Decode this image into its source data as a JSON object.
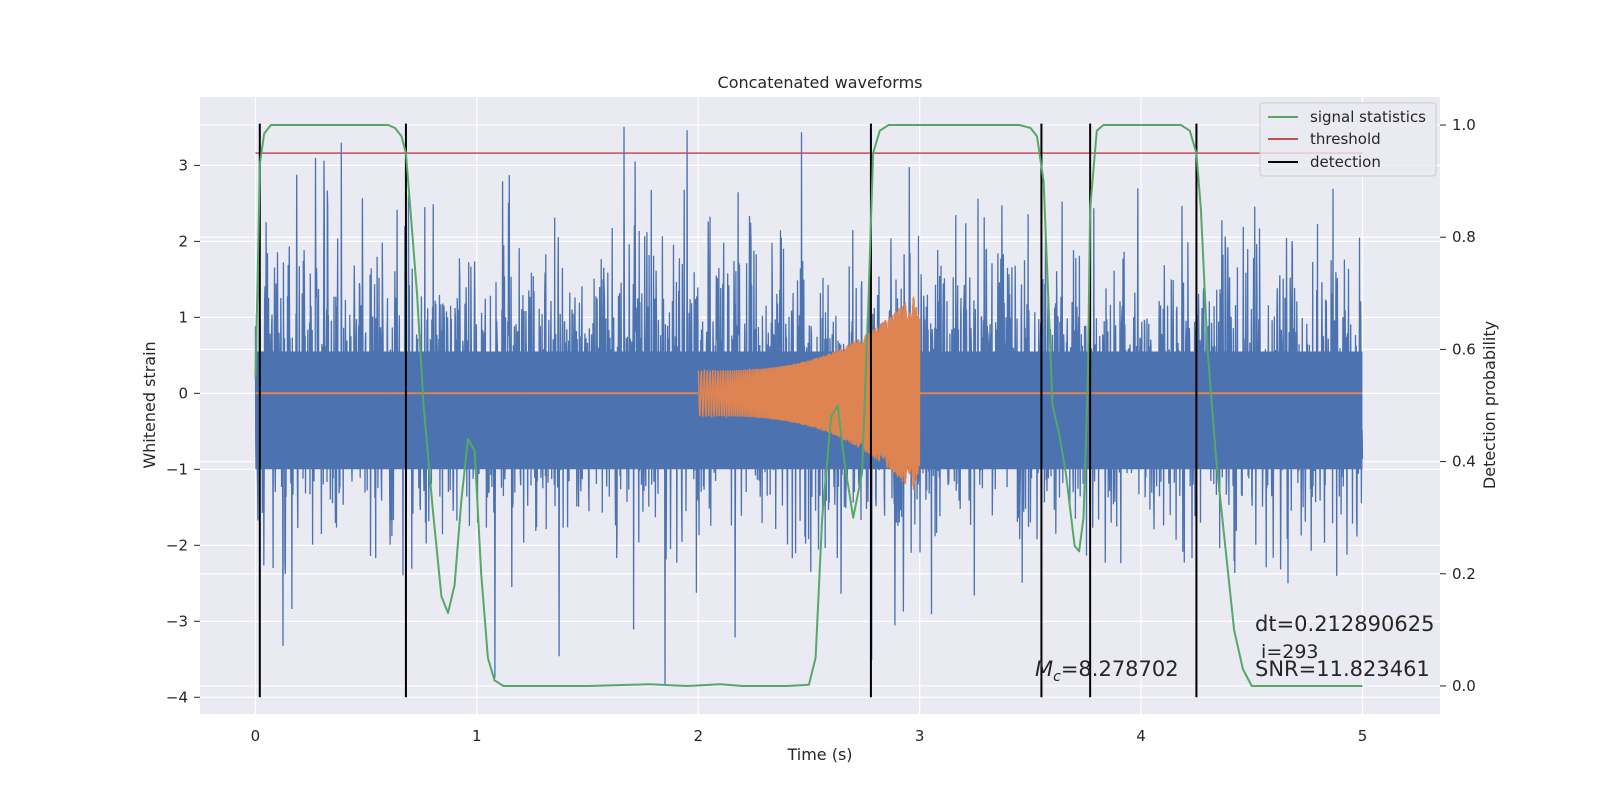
{
  "chart_data": {
    "type": "line",
    "title": "Concatenated waveforms",
    "xlabel": "Time (s)",
    "ylabel": "Whitened strain",
    "ylabel_right": "Detection probability",
    "xlim": [
      -0.25,
      5.35
    ],
    "ylim": [
      -4.22,
      3.9
    ],
    "ylim_right": [
      -0.05,
      1.05
    ],
    "x_ticks": [
      0,
      1,
      2,
      3,
      4,
      5
    ],
    "y_ticks": [
      -4,
      -3,
      -2,
      -1,
      0,
      1,
      2,
      3
    ],
    "y_ticks_right": [
      0.0,
      0.2,
      0.4,
      0.6,
      0.8,
      1.0
    ],
    "grid": true,
    "legend_position": "top-right",
    "colors": {
      "background": "#eaeaf2",
      "grid": "#ffffff",
      "strain": "#4c72b0",
      "template": "#dd8452",
      "signal_statistics": "#55a868",
      "threshold": "#c44e52",
      "detection": "#000000"
    },
    "series": [
      {
        "name": "signal statistics",
        "axis": "right",
        "x": [
          0.0,
          0.01,
          0.02,
          0.04,
          0.07,
          0.1,
          0.15,
          0.6,
          0.63,
          0.66,
          0.68,
          0.7,
          0.73,
          0.76,
          0.8,
          0.84,
          0.87,
          0.9,
          0.93,
          0.96,
          0.99,
          1.02,
          1.05,
          1.08,
          1.12,
          1.2,
          1.5,
          1.78,
          1.95,
          2.1,
          2.2,
          2.4,
          2.5,
          2.53,
          2.56,
          2.6,
          2.63,
          2.66,
          2.7,
          2.74,
          2.77,
          2.79,
          2.82,
          2.86,
          2.95,
          3.45,
          3.5,
          3.53,
          3.56,
          3.58,
          3.6,
          3.63,
          3.66,
          3.7,
          3.72,
          3.74,
          3.76,
          3.77,
          3.8,
          3.83,
          3.86,
          4.18,
          4.22,
          4.25,
          4.27,
          4.3,
          4.34,
          4.38,
          4.42,
          4.46,
          4.5,
          4.6,
          5.0
        ],
        "y": [
          0.55,
          0.72,
          0.93,
          0.985,
          1.0,
          1.0,
          1.0,
          1.0,
          0.995,
          0.98,
          0.95,
          0.85,
          0.7,
          0.5,
          0.32,
          0.16,
          0.13,
          0.18,
          0.33,
          0.44,
          0.42,
          0.2,
          0.05,
          0.01,
          0.0,
          0.0,
          0.0,
          0.003,
          0.0,
          0.003,
          0.0,
          0.0,
          0.002,
          0.05,
          0.3,
          0.48,
          0.5,
          0.4,
          0.3,
          0.38,
          0.7,
          0.95,
          0.99,
          1.0,
          1.0,
          1.0,
          0.995,
          0.98,
          0.9,
          0.7,
          0.5,
          0.45,
          0.38,
          0.25,
          0.24,
          0.3,
          0.55,
          0.85,
          0.99,
          1.0,
          1.0,
          1.0,
          0.99,
          0.95,
          0.85,
          0.6,
          0.4,
          0.25,
          0.1,
          0.03,
          0.0,
          0.0,
          0.0
        ]
      },
      {
        "name": "threshold",
        "axis": "right",
        "x": [
          0.0,
          5.0
        ],
        "y": [
          0.95,
          0.95
        ]
      },
      {
        "name": "detection",
        "axis": "left",
        "x": [
          0.02,
          0.68,
          2.78,
          3.55,
          3.77,
          4.25
        ],
        "y_range": [
          -4.0,
          3.55
        ]
      }
    ],
    "strain_noise": {
      "x_range": [
        0.0,
        5.0
      ],
      "dense_band": [
        -1.0,
        0.55
      ],
      "peak_range": [
        -4.0,
        3.55
      ]
    },
    "template_waveform": {
      "x_range": [
        2.0,
        3.0
      ],
      "amplitude_start": 0.3,
      "amplitude_end": 1.4
    },
    "legend": [
      {
        "label": "signal statistics",
        "color": "#55a868"
      },
      {
        "label": "threshold",
        "color": "#c44e52"
      },
      {
        "label": "detection",
        "color": "#000000"
      }
    ],
    "annotations": {
      "dt": "dt=0.212890625",
      "index": " i=293",
      "snr": "SNR=11.823461",
      "mc_symbol": "M",
      "mc_sub": "c",
      "mc_value": "=8.278702"
    }
  }
}
